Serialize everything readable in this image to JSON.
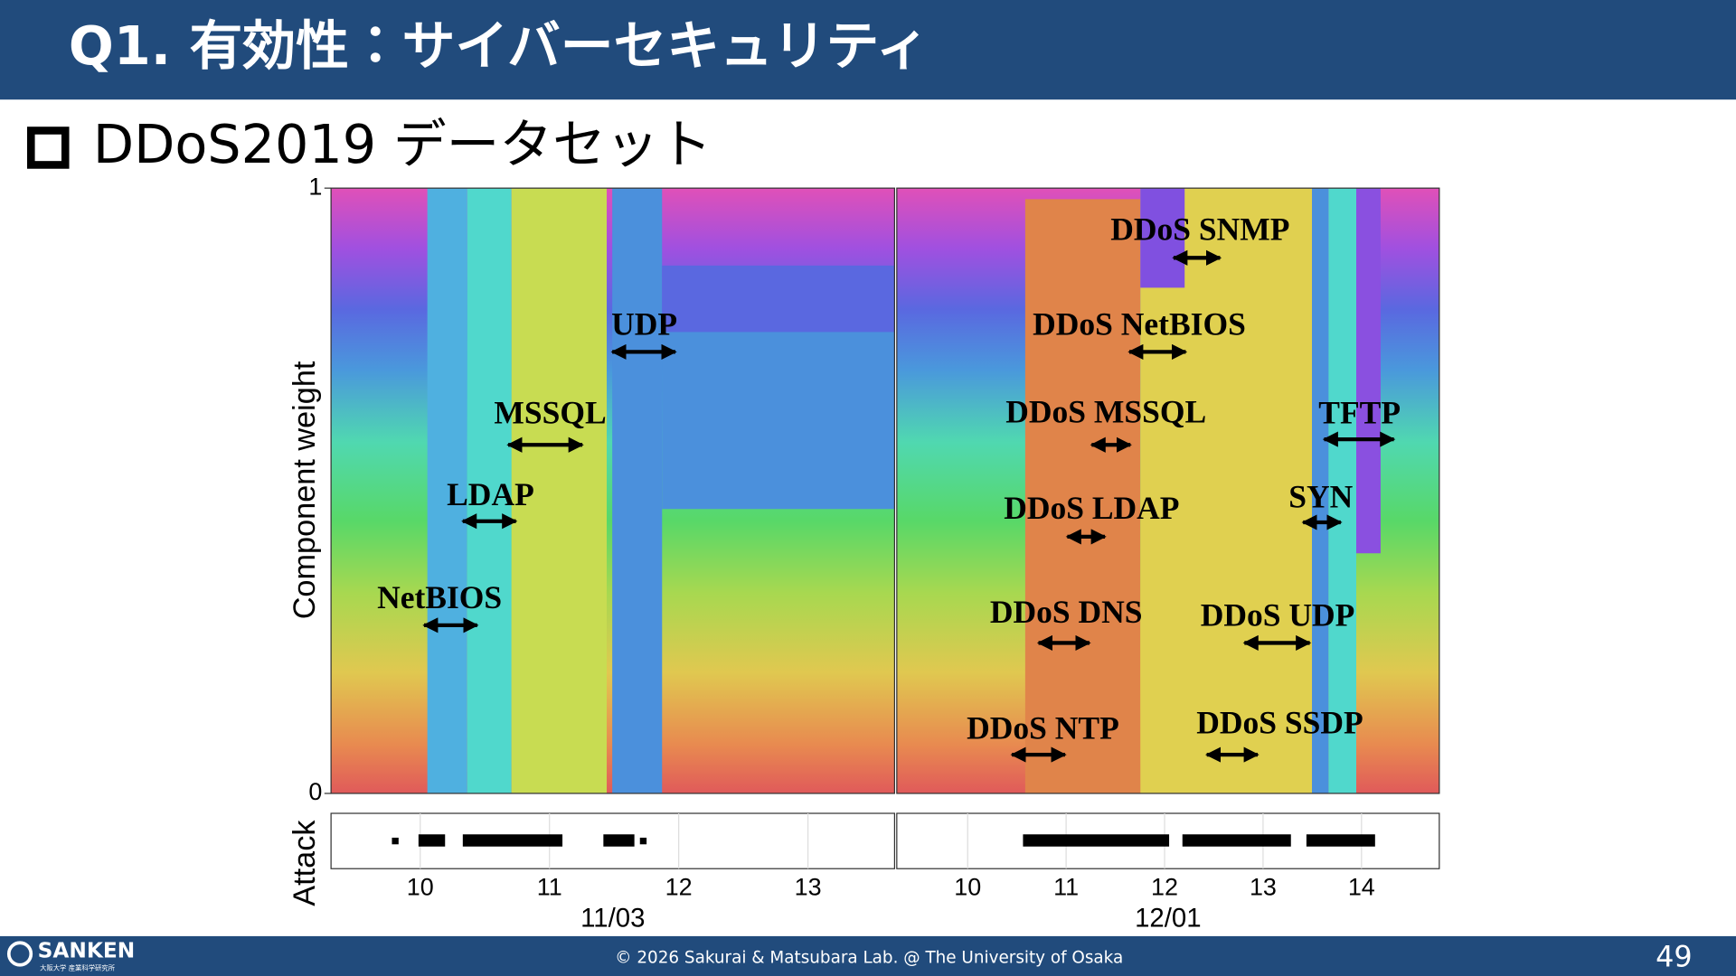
{
  "header": {
    "title": "Q1. 有効性：サイバーセキュリティ"
  },
  "bullet": "DDoS2019 データセット",
  "figure": {
    "y_label": "Component weight",
    "ylim": [
      0,
      1
    ],
    "yticks": [
      0,
      1
    ],
    "attack_label": "Attack",
    "panels": [
      {
        "date": "11/03",
        "xlim": [
          9.31,
          13.67
        ],
        "xticks": [
          10,
          11,
          12,
          13
        ],
        "annotations": [
          "UDP",
          "MSSQL",
          "LDAP",
          "NetBIOS"
        ]
      },
      {
        "date": "12/01",
        "xlim": [
          9.28,
          14.79
        ],
        "xticks": [
          10,
          11,
          12,
          13,
          14
        ],
        "annotations": [
          "DDoS SNMP",
          "DDoS NetBIOS",
          "DDoS MSSQL",
          "TFTP",
          "DDoS LDAP",
          "SYN",
          "DDoS DNS",
          "DDoS UDP",
          "DDoS NTP",
          "DDoS SSDP"
        ]
      }
    ]
  },
  "footer": {
    "logo": "SANKEN",
    "logo_sub": "大阪大学 産業科学研究所",
    "copyright": "© 2026 Sakurai & Matsubara Lab. @ The University of Osaka",
    "page": 49
  }
}
